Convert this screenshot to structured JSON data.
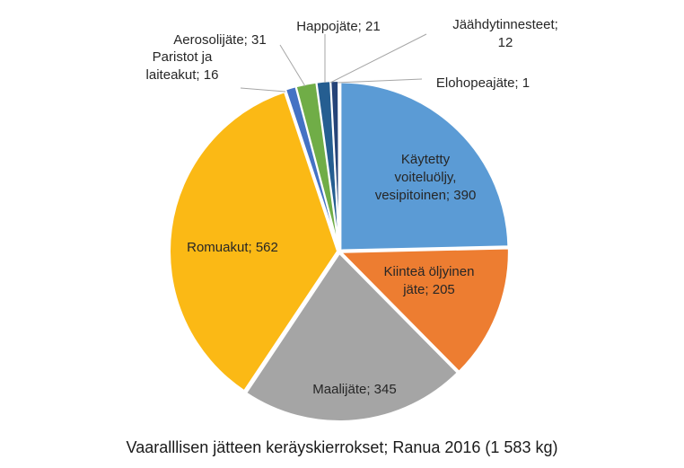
{
  "chart_data": {
    "type": "pie",
    "title": "Vaaralllisen jätteen keräyskierrokset; Ranua 2016 (1 583 kg)",
    "slices": [
      {
        "name": "Käytetty voiteluöljy, vesipitoinen",
        "value": 390,
        "color": "#5b9bd5",
        "label_lines": [
          "Käytetty",
          "voiteluöljy,",
          "vesipitoinen; 390"
        ]
      },
      {
        "name": "Kiinteä öljyinen jäte",
        "value": 205,
        "color": "#ed7d31",
        "label_lines": [
          "Kiinteä öljyinen",
          "jäte; 205"
        ]
      },
      {
        "name": "Maalijäte",
        "value": 345,
        "color": "#a5a5a5",
        "label_lines": [
          "Maalijäte; 345"
        ]
      },
      {
        "name": "Romuakut",
        "value": 562,
        "color": "#fbb915",
        "label_lines": [
          "Romuakut; 562"
        ]
      },
      {
        "name": "Paristot ja laiteakut",
        "value": 16,
        "color": "#4472c4",
        "label_lines": [
          "Paristot ja",
          "laiteakut; 16"
        ]
      },
      {
        "name": "Aerosolijäte",
        "value": 31,
        "color": "#70ad47",
        "label_lines": [
          "Aerosolijäte; 31"
        ]
      },
      {
        "name": "Happojäte",
        "value": 21,
        "color": "#255e91",
        "label_lines": [
          "Happojäte; 21"
        ]
      },
      {
        "name": "Jäähdytinnesteet",
        "value": 12,
        "color": "#264478",
        "label_lines": [
          "Jäähdytinnesteet;",
          "12"
        ]
      },
      {
        "name": "Elohopeajäte",
        "value": 1,
        "color": "#9e480e",
        "label_lines": [
          "Elohopeajäte; 1"
        ]
      }
    ]
  }
}
